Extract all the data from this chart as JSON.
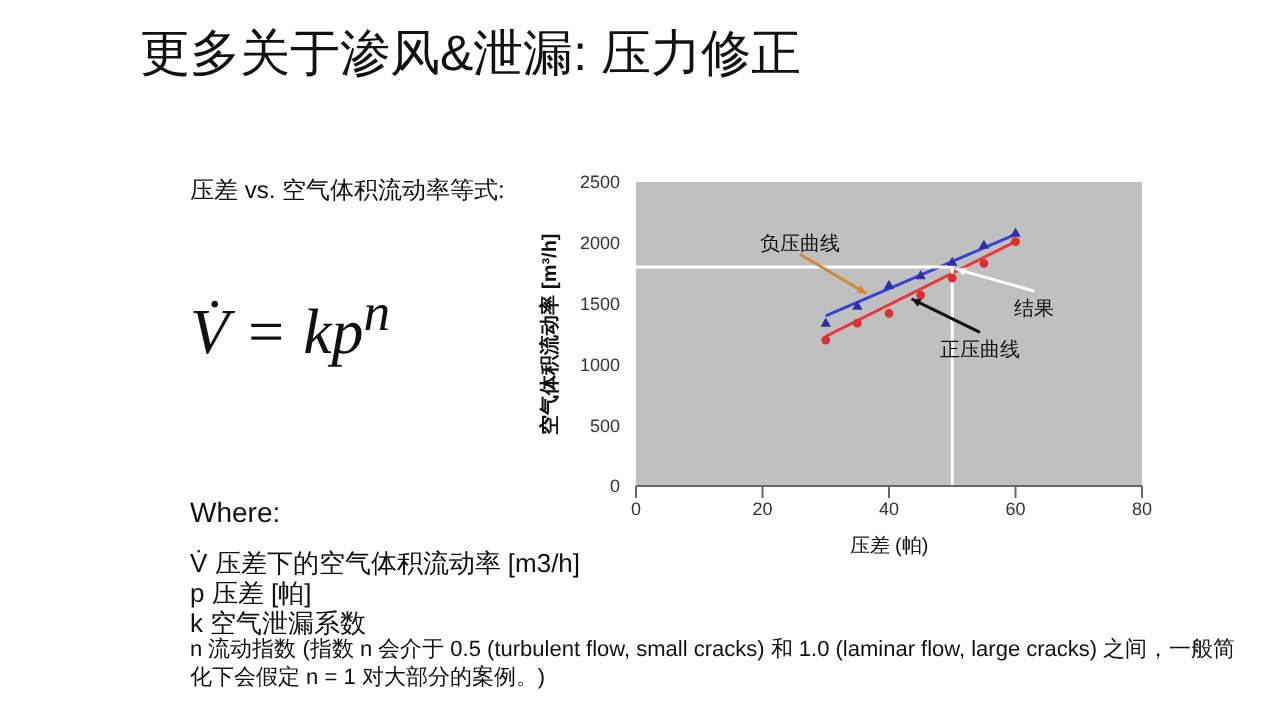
{
  "chart_data": {
    "type": "scatter",
    "title": "更多关于渗风&泄漏: 压力修正",
    "xlabel": "压差 (帕)",
    "ylabel": "空气体积流动率 [m³/h]",
    "xlim": [
      0,
      80
    ],
    "xticks": [
      0,
      20,
      40,
      60,
      80
    ],
    "ylim": [
      0,
      2500
    ],
    "yticks": [
      0,
      500,
      1000,
      1500,
      2000,
      2500
    ],
    "series": [
      {
        "marker": "triangle",
        "color": "#2b2fa8",
        "x": [
          30,
          35,
          40,
          45,
          50,
          55,
          60
        ],
        "values": [
          1340,
          1480,
          1650,
          1730,
          1840,
          1980,
          2080
        ]
      },
      {
        "marker": "circle",
        "color": "#d83030",
        "x": [
          30,
          35,
          40,
          45,
          50,
          55,
          60
        ],
        "values": [
          1200,
          1340,
          1420,
          1570,
          1710,
          1830,
          2010
        ]
      },
      {
        "type": "line",
        "marker": "none",
        "color": "#3a44d0",
        "x": [
          30,
          60
        ],
        "values": [
          1400,
          2070
        ]
      },
      {
        "type": "line",
        "marker": "none",
        "color": "#e83a3a",
        "x": [
          30,
          60
        ],
        "values": [
          1230,
          2010
        ]
      },
      {
        "type": "line",
        "marker": "none",
        "color": "#ffffff",
        "x": [
          0,
          50,
          50
        ],
        "values": [
          1800,
          1800,
          0
        ]
      }
    ],
    "annotations": [
      "压差 vs. 空气体积流动率等式:",
      "V̇ = kp$^{n}$",
      "Where:",
      "V̇ 压差下的空气体积流动率 [m3/h]",
      "p 压差 [帕]",
      "k  空气泄漏系数",
      "n  流动指数 (指数 n 会介于 0.5 (turbulent flow, small cracks) 和 1.0 (laminar flow, large cracks) 之间，一般简化下会假定 n = 1 对大部分的案例。)",
      {
        "text": "负压曲线",
        "x": 37,
        "y": 1560
      },
      {
        "text": "结果",
        "x": 50,
        "y": 1800
      },
      {
        "text": "正压曲线",
        "x": 43,
        "y": 1560
      }
    ]
  }
}
